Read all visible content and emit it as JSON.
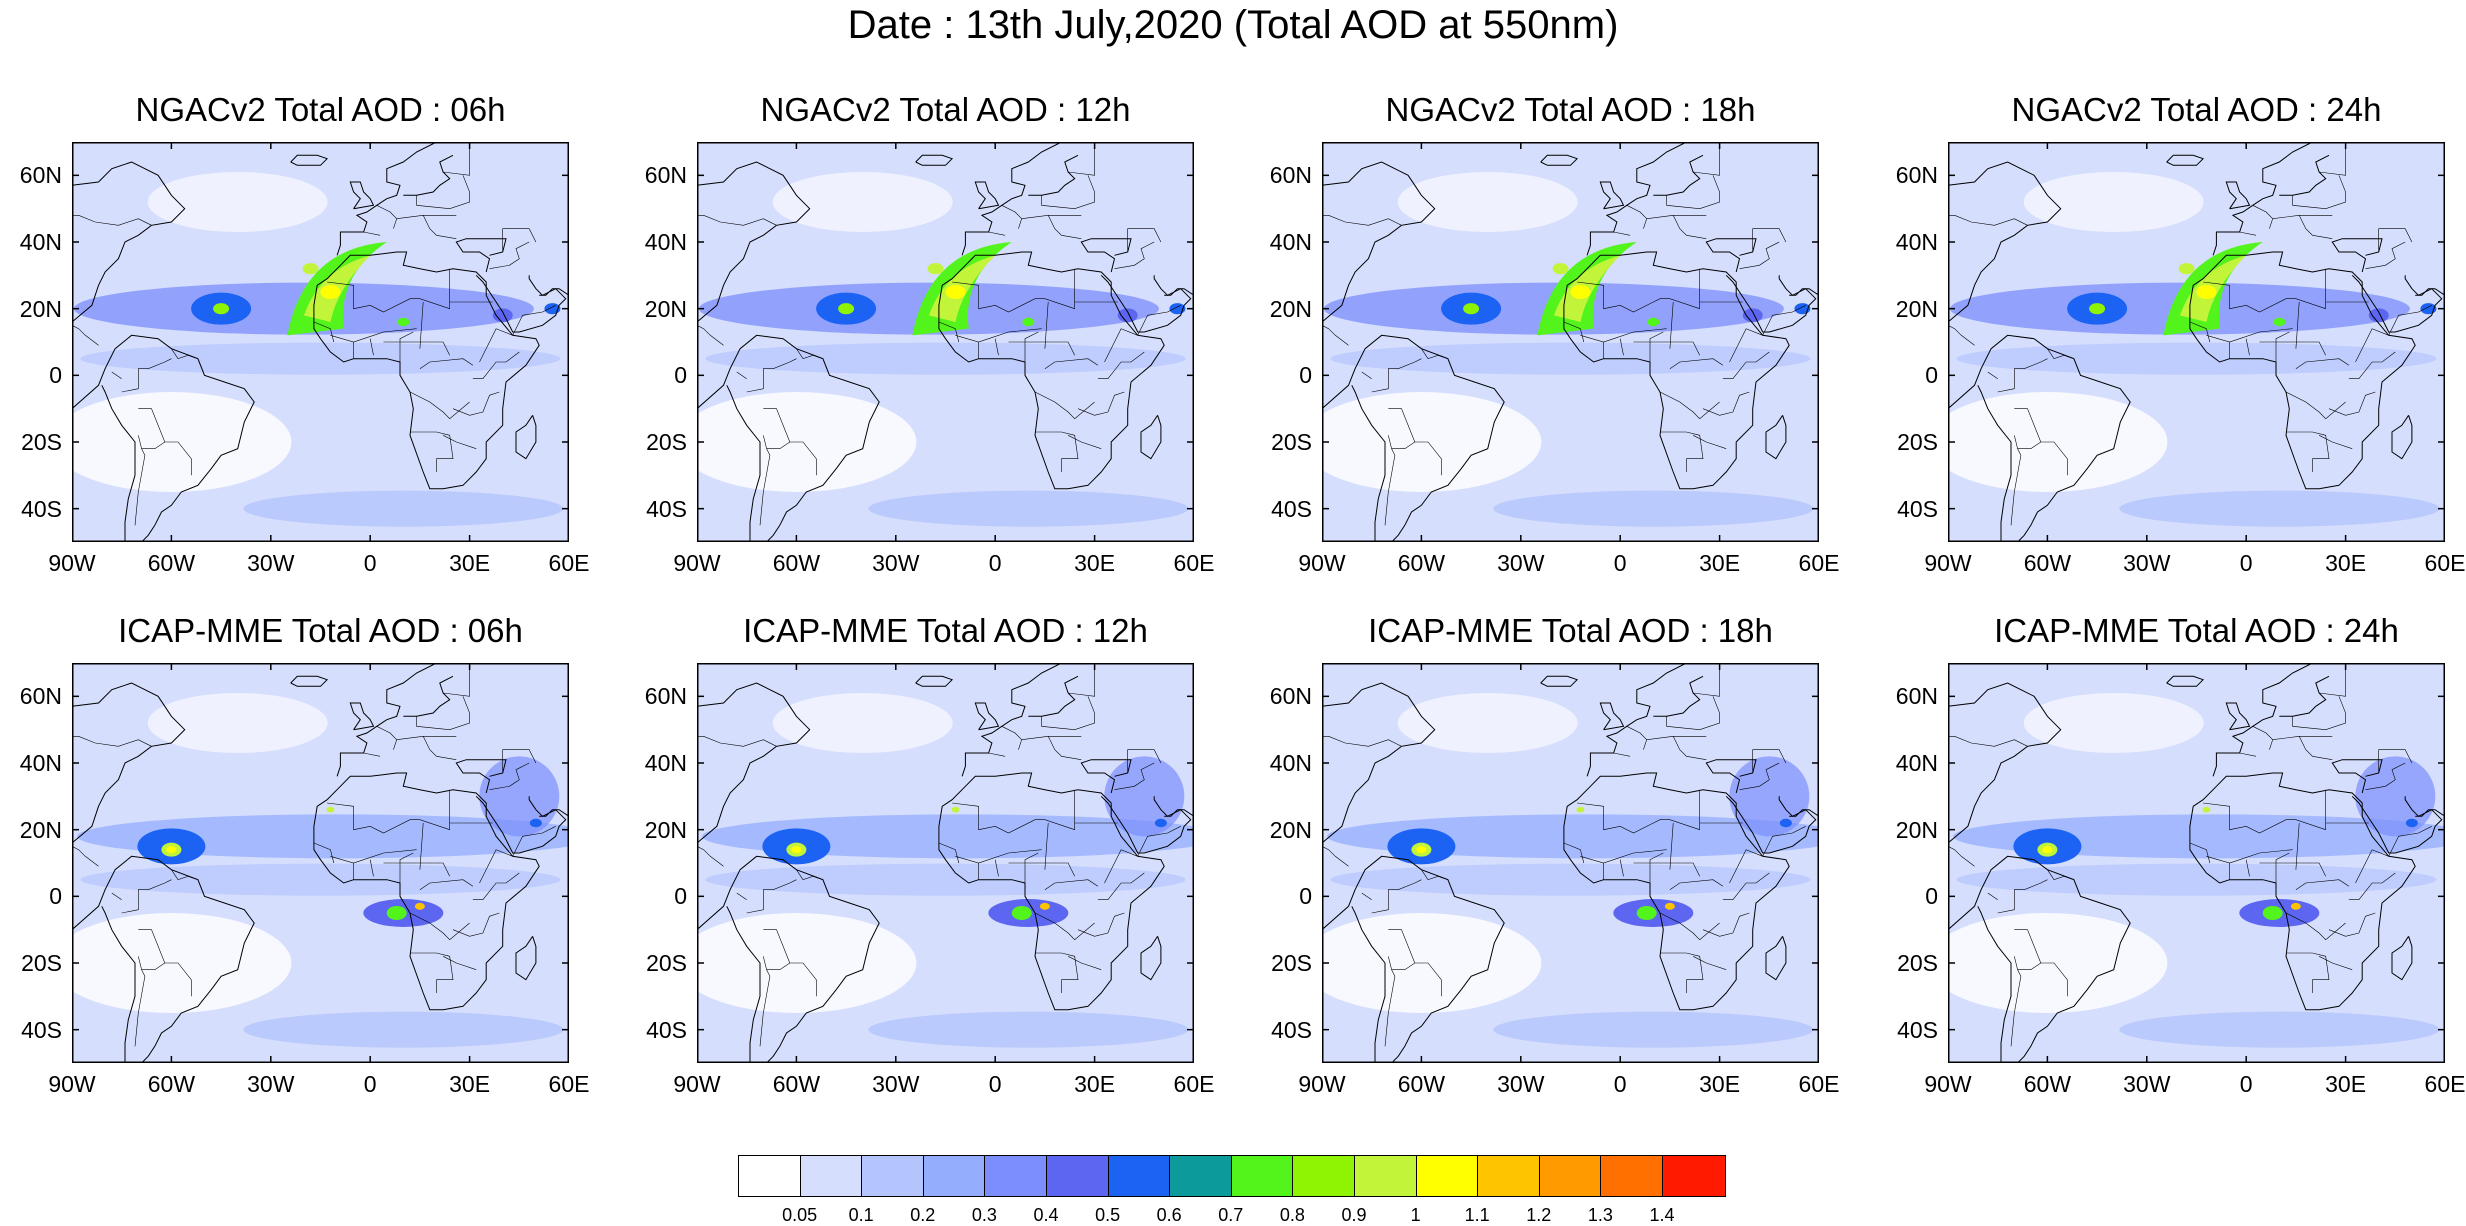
{
  "title": "Date : 13th July,2020 (Total AOD at 550nm)",
  "panels": [
    {
      "title": "NGACv2 Total AOD : 06h",
      "model": "NGACv2",
      "hour": "06h"
    },
    {
      "title": "NGACv2 Total AOD : 12h",
      "model": "NGACv2",
      "hour": "12h"
    },
    {
      "title": "NGACv2 Total AOD : 18h",
      "model": "NGACv2",
      "hour": "18h"
    },
    {
      "title": "NGACv2 Total AOD : 24h",
      "model": "NGACv2",
      "hour": "24h"
    },
    {
      "title": "ICAP-MME Total AOD : 06h",
      "model": "ICAP-MME",
      "hour": "06h"
    },
    {
      "title": "ICAP-MME Total AOD : 12h",
      "model": "ICAP-MME",
      "hour": "12h"
    },
    {
      "title": "ICAP-MME Total AOD : 18h",
      "model": "ICAP-MME",
      "hour": "18h"
    },
    {
      "title": "ICAP-MME Total AOD : 24h",
      "model": "ICAP-MME",
      "hour": "24h"
    }
  ],
  "map_extent": {
    "lon": [
      -90,
      60
    ],
    "lat": [
      -50,
      70
    ]
  },
  "lat_ticks": [
    "60N",
    "40N",
    "20N",
    "0",
    "20S",
    "40S"
  ],
  "lon_ticks": [
    "90W",
    "60W",
    "30W",
    "0",
    "30E",
    "60E"
  ],
  "colorbar": {
    "colors": [
      "#ffffff",
      "#d6defd",
      "#b4c4fd",
      "#94aefd",
      "#7b8efb",
      "#5d66f0",
      "#1c63f4",
      "#0c9a9a",
      "#52f41c",
      "#8ef404",
      "#c2f43a",
      "#ffff00",
      "#ffc400",
      "#ff9a00",
      "#ff7000",
      "#ff1a00"
    ],
    "labels": [
      "0.05",
      "0.1",
      "0.2",
      "0.3",
      "0.4",
      "0.5",
      "0.6",
      "0.7",
      "0.8",
      "0.9",
      "1",
      "1.1",
      "1.2",
      "1.3",
      "1.4"
    ]
  }
}
